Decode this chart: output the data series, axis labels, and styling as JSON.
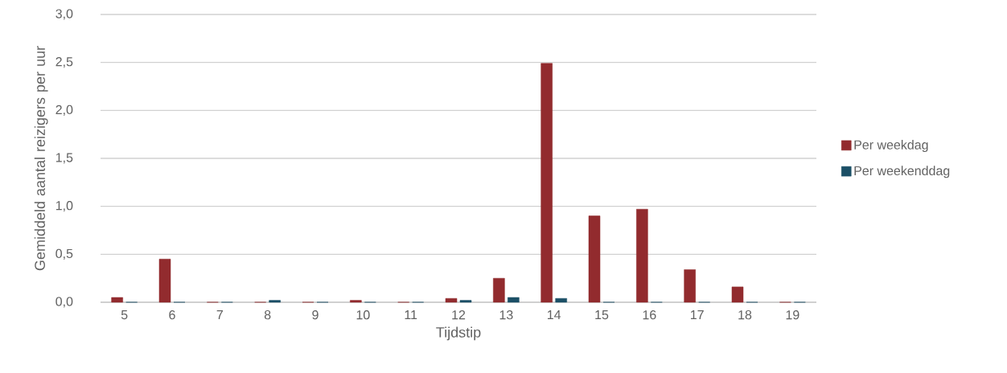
{
  "chart_data": {
    "type": "bar",
    "xlabel": "Tijdstip",
    "ylabel": "Gemiddeld aantal reizigers per uur",
    "categories": [
      "5",
      "6",
      "7",
      "8",
      "9",
      "10",
      "11",
      "12",
      "13",
      "14",
      "15",
      "16",
      "17",
      "18",
      "19"
    ],
    "series": [
      {
        "name": "Per weekdag",
        "color": "#922b2e",
        "values": [
          0.05,
          0.45,
          0,
          0,
          0,
          0.02,
          0,
          0.04,
          0.25,
          2.49,
          0.9,
          0.97,
          0.34,
          0.16,
          0
        ]
      },
      {
        "name": "Per weekenddag",
        "color": "#1b4f66",
        "values": [
          0,
          0,
          0,
          0.02,
          0,
          0,
          0,
          0.02,
          0.05,
          0.04,
          0,
          0,
          0,
          0,
          0
        ]
      }
    ],
    "ylim": [
      0,
      3.0
    ],
    "yticks": [
      {
        "value": 0,
        "label": "0,0"
      },
      {
        "value": 0.5,
        "label": "0,5"
      },
      {
        "value": 1.0,
        "label": "1,0"
      },
      {
        "value": 1.5,
        "label": "1,5"
      },
      {
        "value": 2.0,
        "label": "2,0"
      },
      {
        "value": 2.5,
        "label": "2,5"
      },
      {
        "value": 3.0,
        "label": "3,0"
      }
    ],
    "grid": "y",
    "legend": "right"
  }
}
